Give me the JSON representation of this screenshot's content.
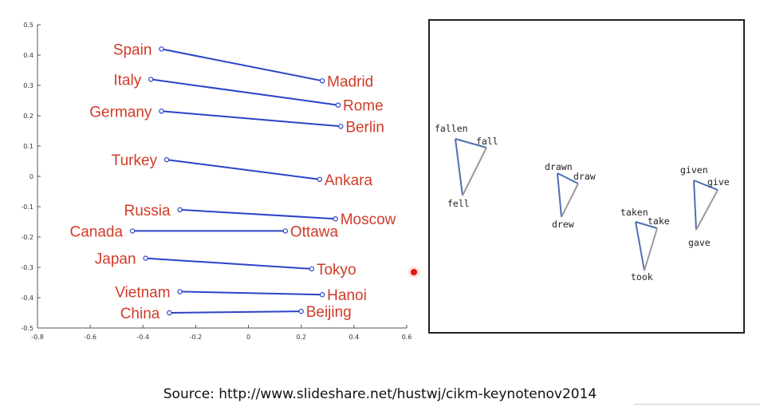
{
  "chart_data": [
    {
      "type": "scatter",
      "title": "",
      "xlabel": "",
      "ylabel": "",
      "xlim": [
        -0.8,
        0.6
      ],
      "ylim": [
        -0.5,
        0.5
      ],
      "xticks": [
        "-0.8",
        "-0.6",
        "-0.4",
        "-0.2",
        "0",
        "0.2",
        "0.4",
        "0.6"
      ],
      "yticks": [
        "0.5",
        "0.4",
        "0.3",
        "0.2",
        "0.1",
        "0",
        "-0.1",
        "-0.2",
        "-0.3",
        "-0.4",
        "-0.5"
      ],
      "grid": false,
      "pairs": [
        {
          "country": "Spain",
          "country_point": [
            -0.33,
            0.42
          ],
          "capital": "Madrid",
          "capital_point": [
            0.28,
            0.315
          ]
        },
        {
          "country": "Italy",
          "country_point": [
            -0.37,
            0.32
          ],
          "capital": "Rome",
          "capital_point": [
            0.34,
            0.235
          ]
        },
        {
          "country": "Germany",
          "country_point": [
            -0.33,
            0.215
          ],
          "capital": "Berlin",
          "capital_point": [
            0.35,
            0.165
          ]
        },
        {
          "country": "Turkey",
          "country_point": [
            -0.31,
            0.055
          ],
          "capital": "Ankara",
          "capital_point": [
            0.27,
            -0.01
          ]
        },
        {
          "country": "Russia",
          "country_point": [
            -0.26,
            -0.11
          ],
          "capital": "Moscow",
          "capital_point": [
            0.33,
            -0.14
          ]
        },
        {
          "country": "Canada",
          "country_point": [
            -0.44,
            -0.18
          ],
          "capital": "Ottawa",
          "capital_point": [
            0.14,
            -0.18
          ]
        },
        {
          "country": "Japan",
          "country_point": [
            -0.39,
            -0.27
          ],
          "capital": "Tokyo",
          "capital_point": [
            0.24,
            -0.305
          ]
        },
        {
          "country": "Vietnam",
          "country_point": [
            -0.26,
            -0.38
          ],
          "capital": "Hanoi",
          "capital_point": [
            0.28,
            -0.39
          ]
        },
        {
          "country": "China",
          "country_point": [
            -0.3,
            -0.45
          ],
          "capital": "Beijing",
          "capital_point": [
            0.2,
            -0.445
          ]
        }
      ]
    },
    {
      "type": "diagram",
      "title": "",
      "axes_visible": false,
      "groups": [
        {
          "labels": {
            "past_participle": "fallen",
            "present": "fall",
            "past": "fell"
          }
        },
        {
          "labels": {
            "past_participle": "drawn",
            "present": "draw",
            "past": "drew"
          }
        },
        {
          "labels": {
            "past_participle": "taken",
            "present": "take",
            "past": "took"
          }
        },
        {
          "labels": {
            "past_participle": "given",
            "present": "give",
            "past": "gave"
          }
        }
      ]
    }
  ],
  "colors": {
    "country_label": "#d03b28",
    "pair_line": "#2b44c8",
    "tense_line_blue": "#4f6fb0",
    "tense_line_gray": "#9a9a9a",
    "frame": "#222222"
  },
  "source_text": "Source: http://www.slideshare.net/hustwj/cikm-keynotenov2014"
}
